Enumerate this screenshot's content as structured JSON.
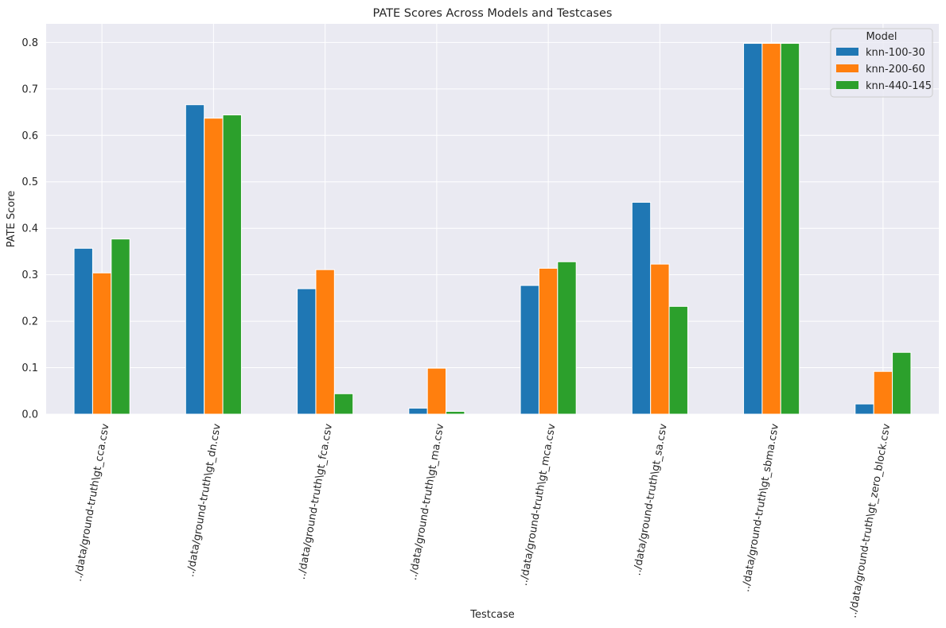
{
  "chart_data": {
    "type": "bar",
    "title": "PATE Scores Across Models and Testcases",
    "xlabel": "Testcase",
    "ylabel": "PATE Score",
    "ylim": [
      0,
      0.84
    ],
    "yticks": [
      0.0,
      0.1,
      0.2,
      0.3,
      0.4,
      0.5,
      0.6,
      0.7,
      0.8
    ],
    "ytick_labels": [
      "0.0",
      "0.1",
      "0.2",
      "0.3",
      "0.4",
      "0.5",
      "0.6",
      "0.7",
      "0.8"
    ],
    "grid": true,
    "legend": {
      "title": "Model",
      "placement": "top-right"
    },
    "categories": [
      "../data/ground-truth\\gt_cca.csv",
      "../data/ground-truth\\gt_dn.csv",
      "../data/ground-truth\\gt_fca.csv",
      "../data/ground-truth\\gt_ma.csv",
      "../data/ground-truth\\gt_mca.csv",
      "../data/ground-truth\\gt_sa.csv",
      "../data/ground-truth\\gt_sbma.csv",
      "../data/ground-truth\\gt_zero_block.csv"
    ],
    "series": [
      {
        "name": "knn-100-30",
        "color": "#1f77b4",
        "values": [
          0.357,
          0.666,
          0.27,
          0.013,
          0.277,
          0.456,
          0.798,
          0.022
        ]
      },
      {
        "name": "knn-200-60",
        "color": "#ff7f0e",
        "values": [
          0.304,
          0.637,
          0.311,
          0.099,
          0.314,
          0.323,
          0.798,
          0.092
        ]
      },
      {
        "name": "knn-440-145",
        "color": "#2ca02c",
        "values": [
          0.377,
          0.644,
          0.044,
          0.006,
          0.328,
          0.232,
          0.798,
          0.133
        ]
      }
    ]
  },
  "colors": {
    "plot_background": "#eaeaf2",
    "grid": "#ffffff",
    "text": "#262626"
  }
}
